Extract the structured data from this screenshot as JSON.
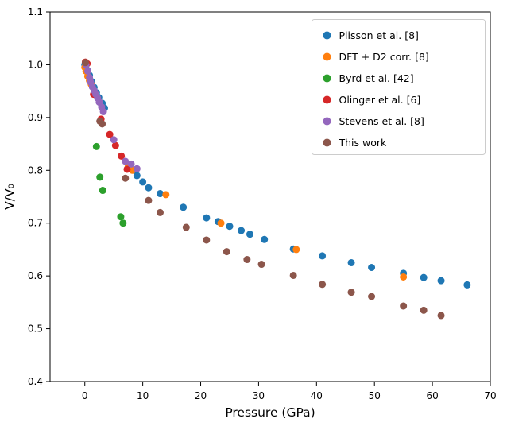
{
  "figure": {
    "background": "#ffffff"
  },
  "chart_data": {
    "type": "scatter",
    "title": "",
    "xlabel": "Pressure (GPa)",
    "ylabel": "V/V₀",
    "xlim": [
      -6,
      70
    ],
    "ylim": [
      0.4,
      1.1
    ],
    "xticks": [
      0,
      10,
      20,
      30,
      40,
      50,
      60,
      70
    ],
    "xtick_labels": [
      "0",
      "10",
      "20",
      "30",
      "40",
      "50",
      "60",
      "70"
    ],
    "yticks": [
      0.4,
      0.5,
      0.6,
      0.7,
      0.8,
      0.9,
      1.0,
      1.1
    ],
    "ytick_labels": [
      "0.4",
      "0.5",
      "0.6",
      "0.7",
      "0.8",
      "0.9",
      "1.0",
      "1.1"
    ],
    "grid": false,
    "legend_position": "upper right",
    "series": [
      {
        "name": "Plisson et al. [8]",
        "color": "#1f77b4",
        "points": [
          [
            0,
            1.0
          ],
          [
            0.4,
            0.99
          ],
          [
            0.8,
            0.98
          ],
          [
            1.2,
            0.968
          ],
          [
            1.6,
            0.957
          ],
          [
            2.0,
            0.947
          ],
          [
            2.4,
            0.938
          ],
          [
            3.0,
            0.927
          ],
          [
            3.4,
            0.918
          ],
          [
            8.5,
            0.8
          ],
          [
            9,
            0.79
          ],
          [
            10,
            0.778
          ],
          [
            11,
            0.767
          ],
          [
            13,
            0.756
          ],
          [
            17,
            0.73
          ],
          [
            21,
            0.71
          ],
          [
            23,
            0.703
          ],
          [
            25,
            0.694
          ],
          [
            27,
            0.686
          ],
          [
            28.5,
            0.679
          ],
          [
            31,
            0.669
          ],
          [
            36,
            0.651
          ],
          [
            41,
            0.638
          ],
          [
            46,
            0.625
          ],
          [
            49.5,
            0.616
          ],
          [
            55,
            0.605
          ],
          [
            58.5,
            0.597
          ],
          [
            61.5,
            0.591
          ],
          [
            66,
            0.583
          ]
        ]
      },
      {
        "name": "DFT + D2 corr. [8]",
        "color": "#ff7f0e",
        "points": [
          [
            0,
            0.995
          ],
          [
            0.2,
            0.988
          ],
          [
            0.5,
            0.978
          ],
          [
            0.8,
            0.97
          ],
          [
            1.1,
            0.963
          ],
          [
            7.5,
            0.808
          ],
          [
            8.2,
            0.8
          ],
          [
            14,
            0.754
          ],
          [
            23.5,
            0.7
          ],
          [
            36.5,
            0.65
          ],
          [
            55,
            0.598
          ]
        ]
      },
      {
        "name": "Byrd et al. [42]",
        "color": "#2ca02c",
        "points": [
          [
            2,
            0.845
          ],
          [
            2.6,
            0.787
          ],
          [
            3.1,
            0.762
          ],
          [
            6.2,
            0.712
          ],
          [
            6.6,
            0.7
          ]
        ]
      },
      {
        "name": "Olinger et al. [6]",
        "color": "#d62728",
        "points": [
          [
            0.1,
            1.005
          ],
          [
            0.4,
            1.002
          ],
          [
            1.5,
            0.944
          ],
          [
            2.8,
            0.897
          ],
          [
            4.3,
            0.868
          ],
          [
            5.3,
            0.847
          ],
          [
            6.3,
            0.827
          ],
          [
            7.3,
            0.802
          ]
        ]
      },
      {
        "name": "Stevens et al. [8]",
        "color": "#9467bd",
        "points": [
          [
            0.2,
            1.0
          ],
          [
            0.5,
            0.988
          ],
          [
            0.8,
            0.976
          ],
          [
            1.0,
            0.967
          ],
          [
            1.3,
            0.958
          ],
          [
            1.6,
            0.951
          ],
          [
            1.9,
            0.944
          ],
          [
            2.2,
            0.937
          ],
          [
            2.5,
            0.929
          ],
          [
            2.9,
            0.92
          ],
          [
            3.2,
            0.911
          ],
          [
            5,
            0.858
          ],
          [
            7,
            0.817
          ],
          [
            8,
            0.812
          ],
          [
            9,
            0.803
          ]
        ]
      },
      {
        "name": "This work",
        "color": "#8c564b",
        "points": [
          [
            0.1,
            1.004
          ],
          [
            2.6,
            0.893
          ],
          [
            3.0,
            0.888
          ],
          [
            7,
            0.785
          ],
          [
            11,
            0.743
          ],
          [
            13,
            0.72
          ],
          [
            17.5,
            0.692
          ],
          [
            21,
            0.668
          ],
          [
            24.5,
            0.646
          ],
          [
            28,
            0.631
          ],
          [
            30.5,
            0.622
          ],
          [
            36,
            0.601
          ],
          [
            41,
            0.584
          ],
          [
            46,
            0.569
          ],
          [
            49.5,
            0.561
          ],
          [
            55,
            0.543
          ],
          [
            58.5,
            0.535
          ],
          [
            61.5,
            0.525
          ]
        ]
      }
    ]
  }
}
